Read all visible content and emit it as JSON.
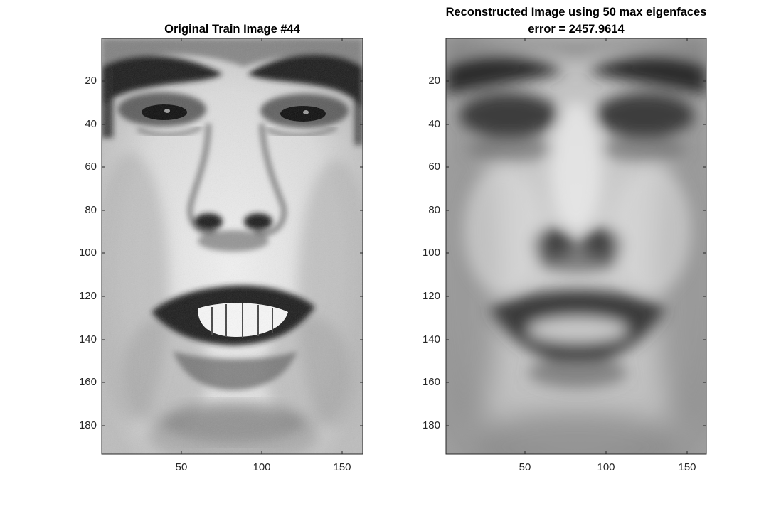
{
  "figure": {
    "panels": [
      {
        "id": "original",
        "title_lines": [
          "Original Train Image #44"
        ],
        "image_desc": "grayscale photo of smiling man's face",
        "y_ticks": [
          "20",
          "40",
          "60",
          "80",
          "100",
          "120",
          "140",
          "160",
          "180"
        ],
        "x_ticks": [
          "50",
          "100",
          "150"
        ]
      },
      {
        "id": "reconstructed",
        "title_lines": [
          "Reconstructed Image using 50 max eigenfaces",
          "error = 2457.9614"
        ],
        "image_desc": "blurry grayscale eigenface reconstruction of smiling face",
        "y_ticks": [
          "20",
          "40",
          "60",
          "80",
          "100",
          "120",
          "140",
          "160",
          "180"
        ],
        "x_ticks": [
          "50",
          "100",
          "150"
        ]
      }
    ],
    "axis_color": "#262626",
    "reconstruction_error": 2457.9614,
    "eigenfaces_used": 50,
    "train_image_index": 44
  }
}
